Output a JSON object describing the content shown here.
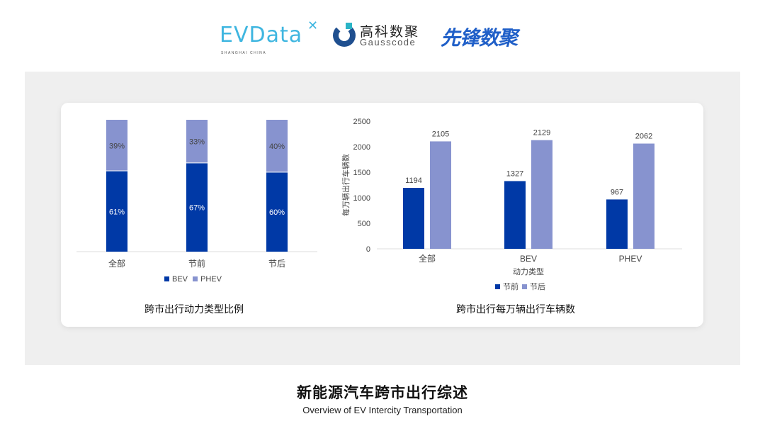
{
  "logos": {
    "evdata": "EVData",
    "evdata_sub": "SHANGHAI CHINA",
    "gausscode_cn": "高科数聚",
    "gausscode_en": "Gausscode",
    "xianfeng": "先锋数聚"
  },
  "colors": {
    "dark": "#0039a6",
    "light": "#8793cf"
  },
  "chart_data": [
    {
      "type": "bar",
      "stacked": true,
      "percent": true,
      "title": "跨市出行动力类型比例",
      "categories": [
        "全部",
        "节前",
        "节后"
      ],
      "series": [
        {
          "name": "BEV",
          "values": [
            61,
            67,
            60
          ],
          "labels": [
            "61%",
            "67%",
            "60%"
          ]
        },
        {
          "name": "PHEV",
          "values": [
            39,
            33,
            40
          ],
          "labels": [
            "39%",
            "33%",
            "40%"
          ]
        }
      ],
      "legend": "bottom",
      "ylim": [
        0,
        100
      ]
    },
    {
      "type": "bar",
      "title": "跨市出行每万辆出行车辆数",
      "xlabel": "动力类型",
      "ylabel": "每万辆出行车辆数",
      "categories": [
        "全部",
        "BEV",
        "PHEV"
      ],
      "series": [
        {
          "name": "节前",
          "values": [
            1194,
            1327,
            967
          ]
        },
        {
          "name": "节后",
          "values": [
            2105,
            2129,
            2062
          ]
        }
      ],
      "yticks": [
        0,
        500,
        1000,
        1500,
        2000,
        2500
      ],
      "ylim": [
        0,
        2500
      ],
      "legend": "bottom"
    }
  ],
  "footer": {
    "title": "新能源汽车跨市出行综述",
    "subtitle": "Overview of EV Intercity Transportation"
  }
}
